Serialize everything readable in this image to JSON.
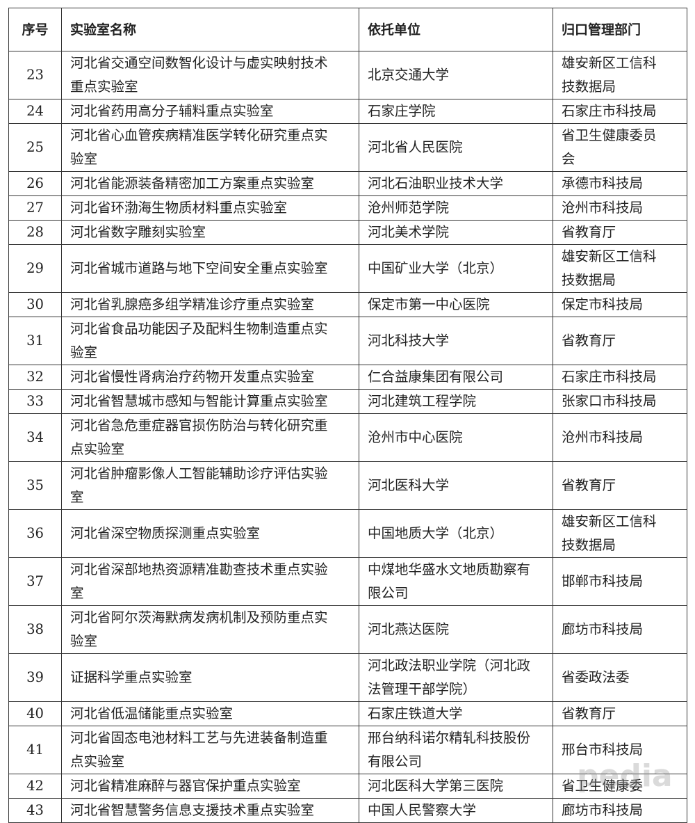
{
  "headers": [
    "序号",
    "实验室名称",
    "依托单位",
    "归口管理部门"
  ],
  "rows": [
    [
      "23",
      "河北省交通空间数智化设计与虚实映射技术重点实验室",
      "北京交通大学",
      "雄安新区工信科技数据局"
    ],
    [
      "24",
      "河北省药用高分子辅料重点实验室",
      "石家庄学院",
      "石家庄市科技局"
    ],
    [
      "25",
      "河北省心血管疾病精准医学转化研究重点实验室",
      "河北省人民医院",
      "省卫生健康委员会"
    ],
    [
      "26",
      "河北省能源装备精密加工方案重点实验室",
      "河北石油职业技术大学",
      "承德市科技局"
    ],
    [
      "27",
      "河北省环渤海生物质材料重点实验室",
      "沧州师范学院",
      "沧州市科技局"
    ],
    [
      "28",
      "河北省数字雕刻实验室",
      "河北美术学院",
      "省教育厅"
    ],
    [
      "29",
      "河北省城市道路与地下空间安全重点实验室",
      "中国矿业大学（北京）",
      "雄安新区工信科技数据局"
    ],
    [
      "30",
      "河北省乳腺癌多组学精准诊疗重点实验室",
      "保定市第一中心医院",
      "保定市科技局"
    ],
    [
      "31",
      "河北省食品功能因子及配料生物制造重点实验室",
      "河北科技大学",
      "省教育厅"
    ],
    [
      "32",
      "河北省慢性肾病治疗药物开发重点实验室",
      "仁合益康集团有限公司",
      "石家庄市科技局"
    ],
    [
      "33",
      "河北省智慧城市感知与智能计算重点实验室",
      "河北建筑工程学院",
      "张家口市科技局"
    ],
    [
      "34",
      "河北省急危重症器官损伤防治与转化研究重点实验室",
      "沧州市中心医院",
      "沧州市科技局"
    ],
    [
      "35",
      "河北省肿瘤影像人工智能辅助诊疗评估实验室",
      "河北医科大学",
      "省教育厅"
    ],
    [
      "36",
      "河北省深空物质探测重点实验室",
      "中国地质大学（北京）",
      "雄安新区工信科技数据局"
    ],
    [
      "37",
      "河北省深部地热资源精准勘查技术重点实验室",
      "中煤地华盛水文地质勘察有限公司",
      "邯郸市科技局"
    ],
    [
      "38",
      "河北省阿尔茨海默病发病机制及预防重点实验室",
      "河北燕达医院",
      "廊坊市科技局"
    ],
    [
      "39",
      "证据科学重点实验室",
      "河北政法职业学院（河北政法管理干部学院）",
      "省委政法委"
    ],
    [
      "40",
      "河北省低温储能重点实验室",
      "石家庄铁道大学",
      "省教育厅"
    ],
    [
      "41",
      "河北省固态电池材料工艺与先进装备制造重点实验室",
      "邢台纳科诺尔精轧科技股份有限公司",
      "邢台市科技局"
    ],
    [
      "42",
      "河北省精准麻醉与器官保护重点实验室",
      "河北医科大学第三医院",
      "省卫生健康委"
    ],
    [
      "43",
      "河北省智慧警务信息支援技术重点实验室",
      "中国人民警察大学",
      "廊坊市科技局"
    ]
  ],
  "watermark": "pedia"
}
